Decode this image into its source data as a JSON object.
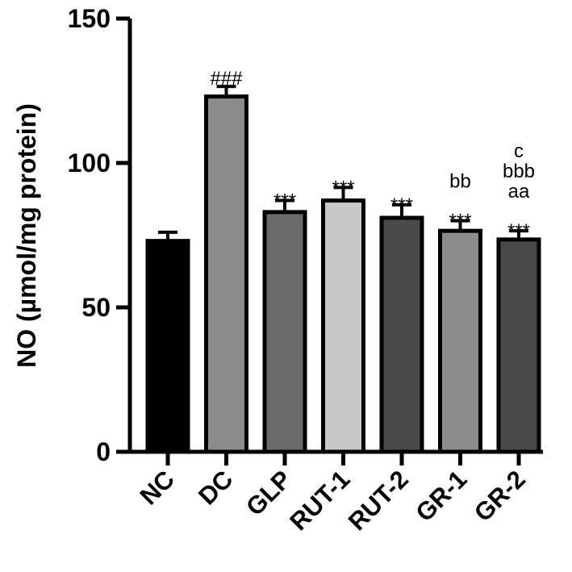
{
  "chart_data": {
    "type": "bar",
    "ylabel": "NO (µmol/mg protein)",
    "xlabel": "",
    "ylim": [
      0,
      150
    ],
    "yticks": [
      0,
      50,
      100,
      150
    ],
    "categories": [
      "NC",
      "DC",
      "GLP",
      "RUT-1",
      "RUT-2",
      "GR-1",
      "GR-2"
    ],
    "values": [
      73,
      123,
      83,
      87,
      81,
      76.5,
      73.5
    ],
    "errors": [
      3,
      3.5,
      4,
      4.5,
      4.5,
      3.5,
      3
    ],
    "bar_colors": [
      "#000000",
      "#8c8c8c",
      "#6b6b6b",
      "#c8c8c8",
      "#4a4a4a",
      "#8c8c8c",
      "#4a4a4a"
    ],
    "annotations": [
      [],
      [
        "###"
      ],
      [
        "***"
      ],
      [
        "***"
      ],
      [
        "***"
      ],
      [
        "***",
        "bb"
      ],
      [
        "***",
        "aa",
        "bbb",
        "c"
      ]
    ],
    "legend": "none",
    "grid": false
  }
}
